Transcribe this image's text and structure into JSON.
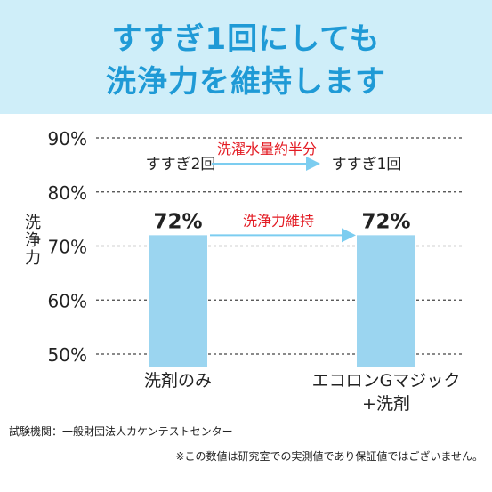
{
  "header": {
    "title_line1": "すすぎ1回にしても",
    "title_line2": "洗浄力を維持します",
    "accent": "#1f9ad6",
    "background": "#cfeef9"
  },
  "chart_data": {
    "type": "bar",
    "ylabel": "洗浄力",
    "ylim": [
      50,
      90
    ],
    "yticks": [
      "90%",
      "80%",
      "70%",
      "60%",
      "50%"
    ],
    "ytick_values": [
      90,
      80,
      70,
      60,
      50
    ],
    "grid": true,
    "categories": [
      "洗剤のみ",
      "エコロンGマジック\n+洗剤"
    ],
    "category_lines": [
      [
        "洗剤のみ"
      ],
      [
        "エコロンGマジック",
        "+洗剤"
      ]
    ],
    "values": [
      72,
      72
    ],
    "value_labels": [
      "72%",
      "72%"
    ],
    "bar_color": "#9bd5f0",
    "annotations": {
      "rinse_left": "すすぎ2回",
      "rinse_right": "すすぎ1回",
      "rinse_arrow_label": "洗濯水量約半分",
      "bar_arrow_label": "洗浄力維持",
      "arrow_label_color": "#e31b23",
      "arrow_color": "#7ccdf0"
    }
  },
  "footer": {
    "source": "試験機関：一般財団法人カケンテストセンター",
    "note": "※この数値は研究室での実測値であり保証値ではございません。"
  }
}
